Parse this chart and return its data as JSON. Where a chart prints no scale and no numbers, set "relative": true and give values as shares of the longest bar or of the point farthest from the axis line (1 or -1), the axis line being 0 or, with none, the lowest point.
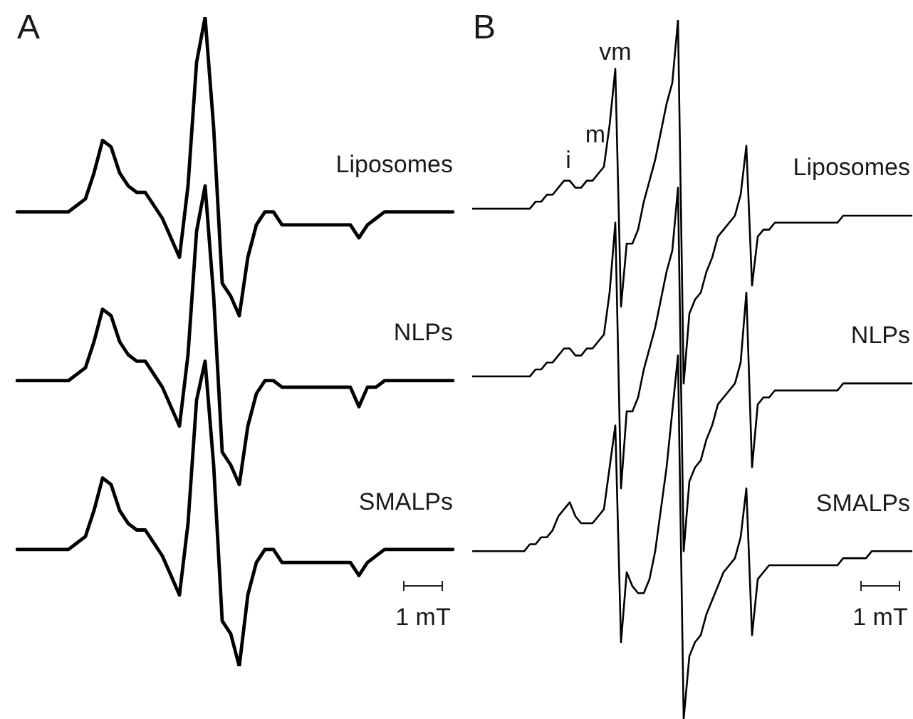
{
  "chart_data": [
    {
      "type": "line",
      "title": "A",
      "relative": true,
      "categories": [
        null,
        null,
        null,
        null,
        null,
        null,
        null,
        null,
        null,
        null,
        null,
        null,
        null,
        null,
        null,
        null,
        null,
        null,
        null,
        null,
        null,
        null,
        null,
        null,
        null,
        null,
        null,
        null,
        null,
        null,
        null,
        null,
        null,
        null,
        null,
        null,
        null,
        null,
        null,
        null,
        null,
        null,
        null,
        null,
        null,
        null,
        null,
        null,
        null,
        null,
        null,
        null
      ],
      "series": [
        {
          "name": "Liposomes",
          "color": "#000000",
          "values": [
            0.7,
            0.7,
            0.7,
            0.7,
            0.7,
            0.7,
            0.7,
            0.71,
            0.72,
            0.76,
            0.81,
            0.8,
            0.76,
            0.74,
            0.73,
            0.73,
            0.71,
            0.69,
            0.66,
            0.63,
            0.74,
            0.93,
            1,
            0.83,
            0.59,
            0.57,
            0.54,
            0.63,
            0.68,
            0.7,
            0.7,
            0.68,
            0.68,
            0.68,
            0.68,
            0.68,
            0.68,
            0.68,
            0.68,
            0.68,
            0.66,
            0.68,
            0.69,
            0.7,
            0.7,
            0.7,
            0.7,
            0.7,
            0.7,
            0.7,
            0.7,
            0.7
          ]
        },
        {
          "name": "NLPs",
          "color": "#000000",
          "values": [
            0.44,
            0.44,
            0.44,
            0.44,
            0.44,
            0.44,
            0.44,
            0.45,
            0.46,
            0.5,
            0.55,
            0.54,
            0.5,
            0.48,
            0.47,
            0.47,
            0.45,
            0.43,
            0.4,
            0.37,
            0.48,
            0.67,
            0.74,
            0.57,
            0.33,
            0.31,
            0.28,
            0.37,
            0.42,
            0.44,
            0.44,
            0.43,
            0.43,
            0.43,
            0.43,
            0.43,
            0.43,
            0.43,
            0.43,
            0.43,
            0.4,
            0.43,
            0.43,
            0.44,
            0.44,
            0.44,
            0.44,
            0.44,
            0.44,
            0.44,
            0.44,
            0.44
          ]
        },
        {
          "name": "SMALPs",
          "color": "#000000",
          "values": [
            0.18,
            0.18,
            0.18,
            0.18,
            0.18,
            0.18,
            0.18,
            0.19,
            0.2,
            0.24,
            0.29,
            0.28,
            0.24,
            0.22,
            0.21,
            0.21,
            0.19,
            0.17,
            0.14,
            0.11,
            0.22,
            0.41,
            0.47,
            0.31,
            0.07,
            0.05,
            0,
            0.11,
            0.16,
            0.18,
            0.18,
            0.16,
            0.16,
            0.16,
            0.16,
            0.16,
            0.16,
            0.16,
            0.16,
            0.16,
            0.14,
            0.16,
            0.17,
            0.18,
            0.18,
            0.18,
            0.18,
            0.18,
            0.18,
            0.18,
            0.18,
            0.18
          ]
        }
      ],
      "annotations": [
        "1 mT"
      ]
    },
    {
      "type": "line",
      "title": "B",
      "relative": true,
      "categories": [
        null,
        null,
        null,
        null,
        null,
        null,
        null,
        null,
        null,
        null,
        null,
        null,
        null,
        null,
        null,
        null,
        null,
        null,
        null,
        null,
        null,
        null,
        null,
        null,
        null,
        null,
        null,
        null,
        null,
        null,
        null,
        null,
        null,
        null,
        null,
        null,
        null,
        null,
        null,
        null,
        null,
        null,
        null,
        null,
        null,
        null,
        null,
        null,
        null,
        null,
        null,
        null,
        null,
        null,
        null,
        null,
        null,
        null,
        null,
        null,
        null,
        null,
        null,
        null,
        null,
        null,
        null,
        null,
        null,
        null,
        null,
        null,
        null,
        null,
        null,
        null,
        null,
        null
      ],
      "series": [
        {
          "name": "Liposomes",
          "color": "#000000",
          "values": [
            0.73,
            0.73,
            0.73,
            0.73,
            0.73,
            0.73,
            0.73,
            0.73,
            0.73,
            0.73,
            0.73,
            0.74,
            0.74,
            0.75,
            0.75,
            0.76,
            0.77,
            0.77,
            0.76,
            0.76,
            0.77,
            0.77,
            0.78,
            0.79,
            0.85,
            0.93,
            0.59,
            0.68,
            0.68,
            0.7,
            0.74,
            0.77,
            0.8,
            0.84,
            0.88,
            0.91,
            1,
            0.48,
            0.58,
            0.6,
            0.61,
            0.64,
            0.66,
            0.69,
            0.7,
            0.71,
            0.72,
            0.75,
            0.82,
            0.62,
            0.69,
            0.7,
            0.7,
            0.71,
            0.71,
            0.71,
            0.71,
            0.71,
            0.71,
            0.71,
            0.71,
            0.71,
            0.71,
            0.71,
            0.71,
            0.72,
            0.72,
            0.72,
            0.72,
            0.72,
            0.72,
            0.72,
            0.72,
            0.72,
            0.72,
            0.72,
            0.72,
            0.72
          ]
        },
        {
          "name": "NLPs",
          "color": "#000000",
          "values": [
            0.49,
            0.49,
            0.49,
            0.49,
            0.49,
            0.49,
            0.49,
            0.49,
            0.49,
            0.49,
            0.49,
            0.5,
            0.5,
            0.51,
            0.51,
            0.52,
            0.53,
            0.53,
            0.52,
            0.52,
            0.53,
            0.53,
            0.54,
            0.55,
            0.61,
            0.71,
            0.33,
            0.44,
            0.44,
            0.46,
            0.5,
            0.53,
            0.56,
            0.6,
            0.64,
            0.67,
            0.76,
            0.24,
            0.34,
            0.36,
            0.37,
            0.4,
            0.42,
            0.45,
            0.46,
            0.47,
            0.48,
            0.51,
            0.61,
            0.36,
            0.45,
            0.46,
            0.46,
            0.47,
            0.47,
            0.47,
            0.47,
            0.47,
            0.47,
            0.47,
            0.47,
            0.47,
            0.47,
            0.47,
            0.47,
            0.48,
            0.48,
            0.48,
            0.48,
            0.48,
            0.48,
            0.48,
            0.48,
            0.48,
            0.48,
            0.48,
            0.48,
            0.48
          ]
        },
        {
          "name": "SMALPs",
          "color": "#000000",
          "values": [
            0.24,
            0.24,
            0.24,
            0.24,
            0.24,
            0.24,
            0.24,
            0.24,
            0.24,
            0.24,
            0.25,
            0.25,
            0.26,
            0.26,
            0.27,
            0.29,
            0.3,
            0.31,
            0.29,
            0.28,
            0.28,
            0.28,
            0.29,
            0.3,
            0.36,
            0.42,
            0.11,
            0.21,
            0.19,
            0.18,
            0.18,
            0.2,
            0.24,
            0.3,
            0.36,
            0.44,
            0.52,
            0,
            0.09,
            0.11,
            0.12,
            0.15,
            0.17,
            0.19,
            0.21,
            0.22,
            0.23,
            0.26,
            0.33,
            0.12,
            0.2,
            0.21,
            0.22,
            0.22,
            0.22,
            0.22,
            0.22,
            0.22,
            0.22,
            0.22,
            0.22,
            0.22,
            0.22,
            0.22,
            0.22,
            0.23,
            0.23,
            0.23,
            0.23,
            0.23,
            0.24,
            0.24,
            0.24,
            0.24,
            0.24,
            0.24,
            0.24,
            0.24
          ]
        }
      ],
      "annotations": [
        "i",
        "m",
        "vm",
        "1 mT"
      ]
    }
  ]
}
